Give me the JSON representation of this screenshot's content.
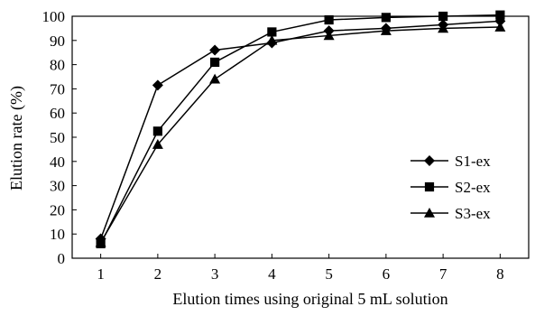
{
  "chart_data": {
    "type": "line",
    "title": "",
    "xlabel": "Elution times using original  5 mL solution",
    "ylabel": "Elution rate (%)",
    "x": [
      1,
      2,
      3,
      4,
      5,
      6,
      7,
      8
    ],
    "xlim": [
      0.5,
      8.5
    ],
    "ylim": [
      0,
      100
    ],
    "y_ticks": [
      0,
      10,
      20,
      30,
      40,
      50,
      60,
      70,
      80,
      90,
      100
    ],
    "grid": false,
    "legend_position": "right",
    "series": [
      {
        "name": "S1-ex",
        "marker": "diamond",
        "color": "#000000",
        "values": [
          8,
          71.5,
          86,
          89,
          94,
          95,
          96.5,
          98
        ]
      },
      {
        "name": "S2-ex",
        "marker": "square",
        "color": "#000000",
        "values": [
          6,
          52.5,
          81,
          93.5,
          98.5,
          99.5,
          100,
          100.5
        ]
      },
      {
        "name": "S3-ex",
        "marker": "triangle",
        "color": "#000000",
        "values": [
          6.5,
          47,
          74,
          90,
          92,
          94,
          95,
          95.5
        ]
      }
    ]
  }
}
